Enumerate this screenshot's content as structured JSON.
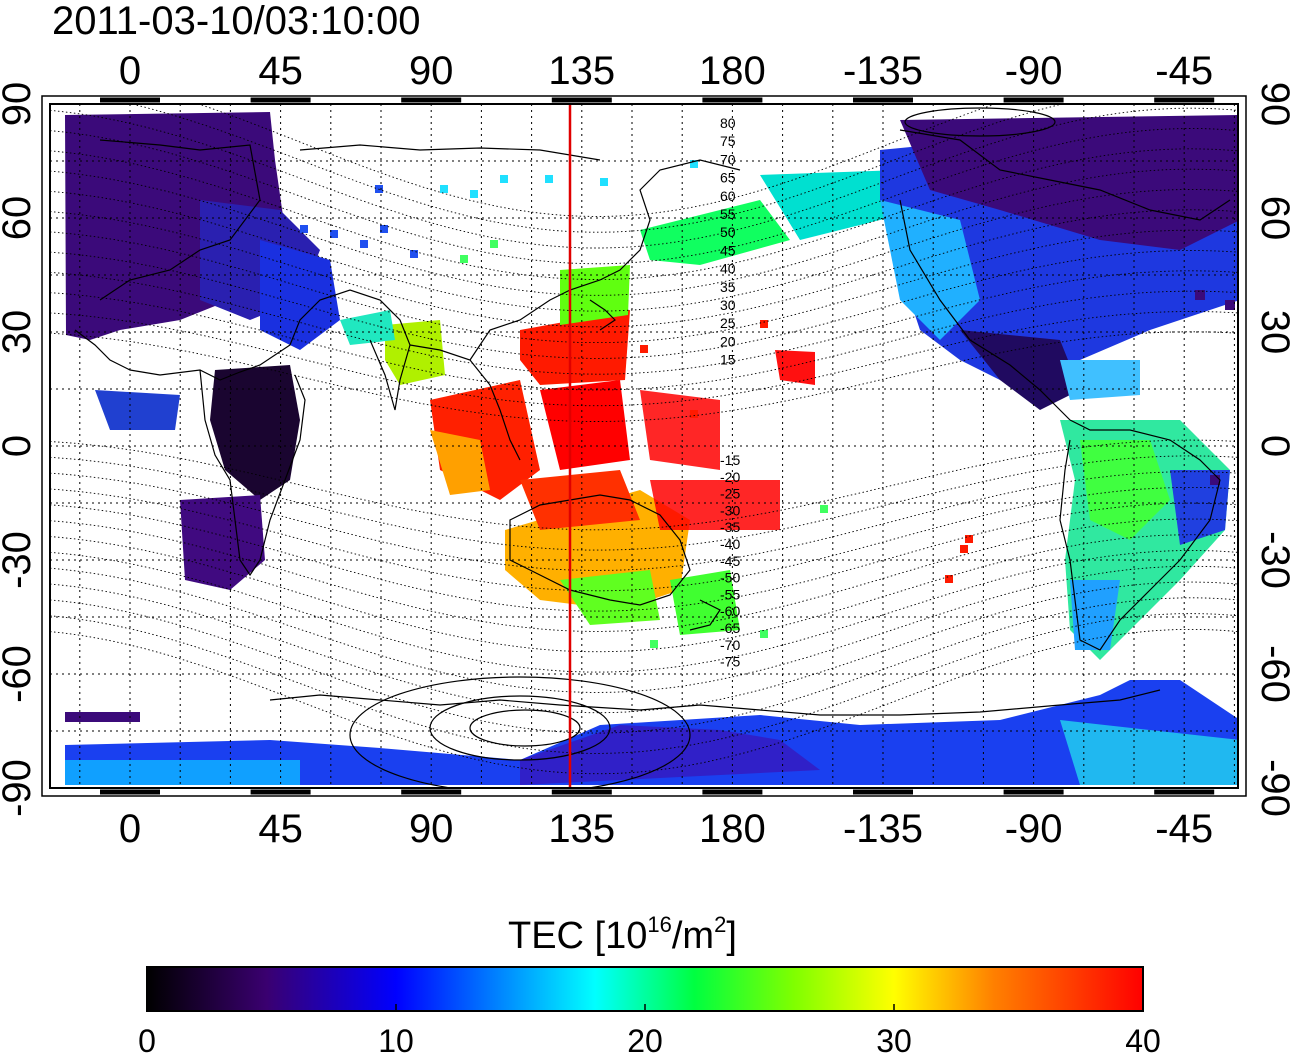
{
  "title": "2011-03-10/03:10:00",
  "map": {
    "x_ticks_top": [
      "0",
      "45",
      "90",
      "135",
      "180",
      "-135",
      "-90",
      "-45"
    ],
    "x_ticks_bottom": [
      "0",
      "45",
      "90",
      "135",
      "180",
      "-135",
      "-90",
      "-45"
    ],
    "y_ticks_left": [
      "90",
      "60",
      "30",
      "0",
      "-30",
      "-60",
      "-90"
    ],
    "y_ticks_right": [
      "90",
      "60",
      "30",
      "0",
      "-30",
      "-60",
      "-90"
    ],
    "meridian_marker_longitude": 132,
    "grid": "dotted, every 15 degrees",
    "magnetic_latitude_labels": [
      "80",
      "75",
      "70",
      "65",
      "60",
      "55",
      "50",
      "45",
      "40",
      "35",
      "30",
      "25",
      "20",
      "15",
      "-15",
      "-20",
      "-25",
      "-30",
      "-35",
      "-40",
      "-45",
      "-50",
      "-55",
      "-60",
      "-65",
      "-70",
      "-75"
    ],
    "colors": {
      "marker": "#e00000",
      "grid": "#000000",
      "coast": "#000000"
    }
  },
  "colorbar": {
    "title_main": "TEC  [10",
    "title_sup1": "16",
    "title_mid": "/m",
    "title_sup2": "2",
    "title_end": "]",
    "ticks": [
      "0",
      "10",
      "20",
      "30",
      "40"
    ],
    "range": [
      0,
      40
    ],
    "colors": [
      "#000000",
      "#3a0070",
      "#0000ff",
      "#00ffff",
      "#00ff00",
      "#ffff00",
      "#ff8000",
      "#ff0000"
    ]
  }
}
